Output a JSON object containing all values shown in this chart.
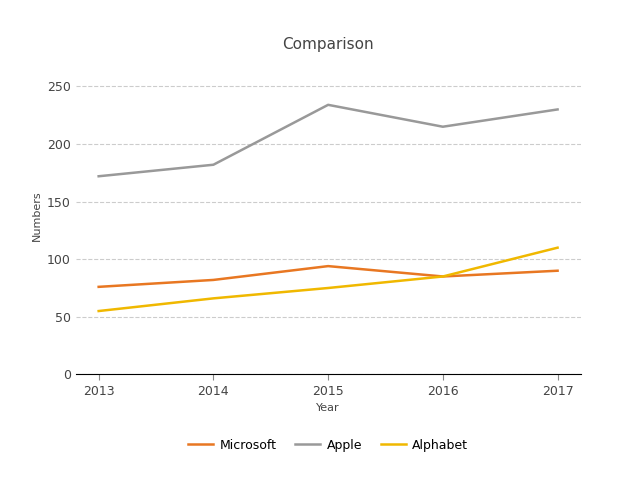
{
  "title": "Comparison",
  "xlabel": "Year",
  "ylabel": "Numbers",
  "years": [
    2013,
    2014,
    2015,
    2016,
    2017
  ],
  "microsoft": [
    76,
    82,
    94,
    85,
    90
  ],
  "apple": [
    172,
    182,
    234,
    215,
    230
  ],
  "alphabet": [
    55,
    66,
    75,
    85,
    110
  ],
  "microsoft_color": "#e87722",
  "apple_color": "#999999",
  "alphabet_color": "#f0b800",
  "ylim": [
    0,
    275
  ],
  "yticks": [
    0,
    50,
    100,
    150,
    200,
    250
  ],
  "bg_color": "#ffffff",
  "chart_bg": "#ffffff",
  "grid_color": "#cccccc",
  "title_color": "#444444",
  "axis_label_color": "#444444",
  "tick_color": "#444444",
  "legend_labels": [
    "Microsoft",
    "Apple",
    "Alphabet"
  ],
  "title_fontsize": 11,
  "axis_label_fontsize": 8,
  "tick_fontsize": 9,
  "legend_fontsize": 9,
  "line_width": 1.8
}
